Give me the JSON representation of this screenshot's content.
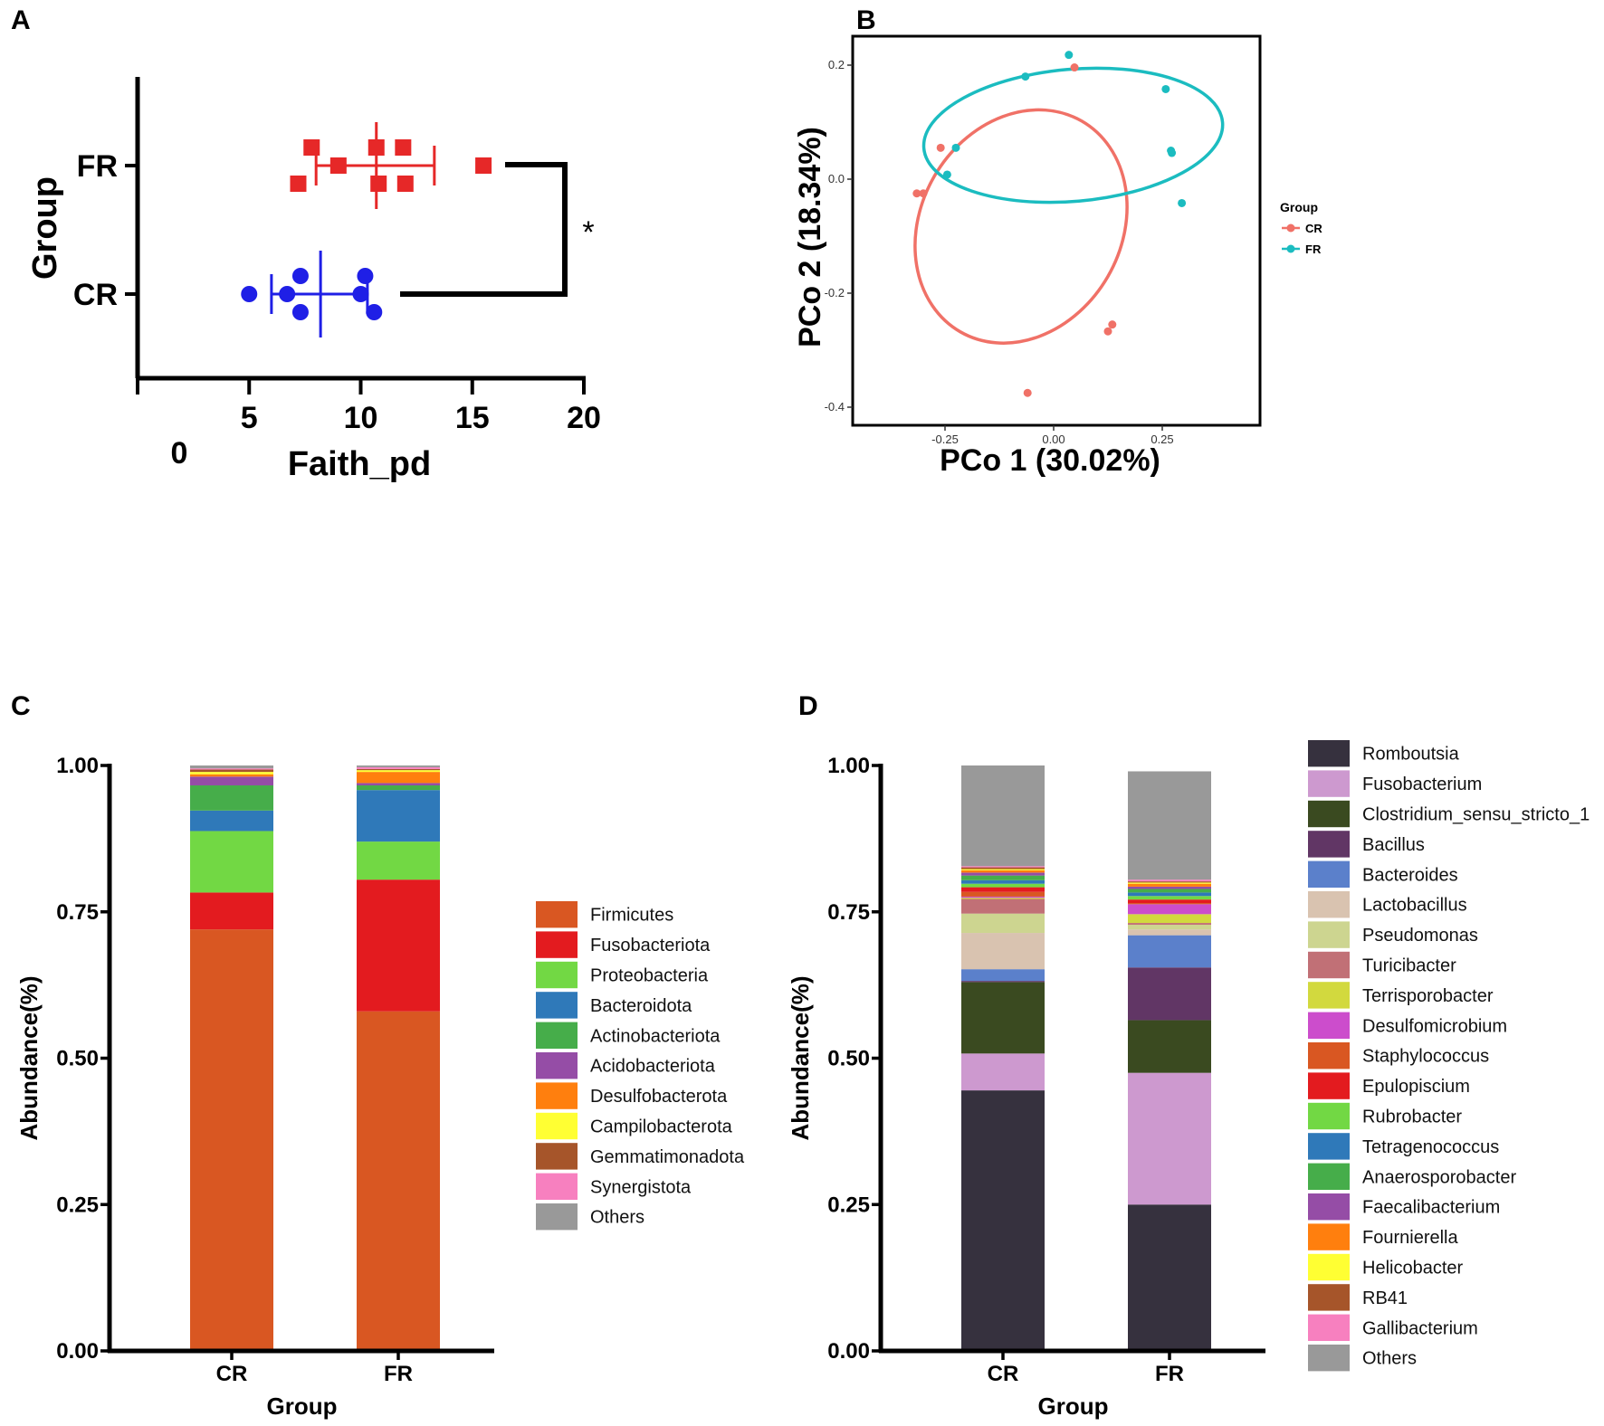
{
  "panels": {
    "a": "A",
    "b": "B",
    "c": "C",
    "d": "D"
  },
  "chart_data": [
    {
      "panel": "A",
      "type": "scatter",
      "xlabel": "Faith_pd",
      "ylabel": "Group",
      "x_ticks": [
        "0",
        "5",
        "10",
        "15",
        "20"
      ],
      "xlim": [
        0,
        20
      ],
      "categories": [
        "CR",
        "FR"
      ],
      "significance": "*",
      "series": [
        {
          "name": "CR",
          "color": "#1f1fe6",
          "marker": "circle",
          "points": [
            [
              5.0,
              0
            ],
            [
              6.7,
              0
            ],
            [
              7.3,
              0.5
            ],
            [
              7.3,
              -0.5
            ],
            [
              10.0,
              0
            ],
            [
              10.2,
              0.5
            ],
            [
              10.6,
              -0.5
            ]
          ],
          "mean": 8.2,
          "sd_low": 6.0,
          "sd_high": 10.3
        },
        {
          "name": "FR",
          "color": "#e62828",
          "marker": "square",
          "points": [
            [
              7.2,
              -0.5
            ],
            [
              7.8,
              0.5
            ],
            [
              9.0,
              0
            ],
            [
              10.7,
              0.5
            ],
            [
              10.8,
              -0.5
            ],
            [
              11.9,
              0.5
            ],
            [
              12.0,
              -0.5
            ],
            [
              15.5,
              0
            ]
          ],
          "mean": 10.7,
          "sd_low": 8.0,
          "sd_high": 13.3
        }
      ]
    },
    {
      "panel": "B",
      "type": "scatter",
      "xlabel": "PCo 1 (30.02%)",
      "ylabel": "PCo 2 (18.34%)",
      "x_ticks": [
        "-0.25",
        "0.00",
        "0.25"
      ],
      "y_ticks": [
        "0.2",
        "0.0",
        "-0.2",
        "-0.4"
      ],
      "legend_title": "Group",
      "series": [
        {
          "name": "CR",
          "color": "#f07167",
          "points": [
            [
              0.048,
              0.196
            ],
            [
              -0.26,
              0.055
            ],
            [
              -0.315,
              -0.025
            ],
            [
              -0.3,
              -0.025
            ],
            [
              0.135,
              -0.255
            ],
            [
              0.125,
              -0.267
            ],
            [
              -0.06,
              -0.375
            ]
          ],
          "ellipse": {
            "cx": -0.075,
            "cy": -0.083,
            "rx": 0.28,
            "ry": 0.185,
            "angle_deg": -60
          }
        },
        {
          "name": "FR",
          "color": "#1bbcc0",
          "points": [
            [
              0.035,
              0.218
            ],
            [
              -0.065,
              0.18
            ],
            [
              0.258,
              0.158
            ],
            [
              -0.225,
              0.055
            ],
            [
              -0.245,
              0.008
            ],
            [
              0.27,
              0.05
            ],
            [
              0.272,
              0.046
            ],
            [
              0.295,
              -0.042
            ]
          ],
          "ellipse": {
            "cx": 0.045,
            "cy": 0.077,
            "rx": 0.345,
            "ry": 0.122,
            "angle_deg": -5
          }
        }
      ]
    },
    {
      "panel": "C",
      "type": "bar",
      "stacked": true,
      "xlabel": "Group",
      "ylabel": "Abundance(%)",
      "categories": [
        "CR",
        "FR"
      ],
      "ylim": [
        0,
        1
      ],
      "y_ticks": [
        "0.00",
        "0.25",
        "0.50",
        "0.75",
        "1.00"
      ],
      "series": [
        {
          "name": "Firmicutes",
          "color": "#d95722",
          "values": [
            0.72,
            0.58
          ]
        },
        {
          "name": "Fusobacteriota",
          "color": "#e31b1f",
          "values": [
            0.063,
            0.225
          ]
        },
        {
          "name": "Proteobacteria",
          "color": "#72d844",
          "values": [
            0.105,
            0.065
          ]
        },
        {
          "name": "Bacteroidota",
          "color": "#2f79b9",
          "values": [
            0.035,
            0.088
          ]
        },
        {
          "name": "Actinobacteriota",
          "color": "#46ad4a",
          "values": [
            0.043,
            0.008
          ]
        },
        {
          "name": "Acidobacteriota",
          "color": "#954da6",
          "values": [
            0.015,
            0.004
          ]
        },
        {
          "name": "Desulfobacterota",
          "color": "#ff7f0e",
          "values": [
            0.004,
            0.019
          ]
        },
        {
          "name": "Campilobacterota",
          "color": "#ffff33",
          "values": [
            0.004,
            0.003
          ]
        },
        {
          "name": "Gemmatimonadota",
          "color": "#a6552a",
          "values": [
            0.004,
            0.002
          ]
        },
        {
          "name": "Synergistota",
          "color": "#f780bf",
          "values": [
            0.002,
            0.003
          ]
        },
        {
          "name": "Others",
          "color": "#999999",
          "values": [
            0.005,
            0.003
          ]
        }
      ]
    },
    {
      "panel": "D",
      "type": "bar",
      "stacked": true,
      "xlabel": "Group",
      "ylabel": "Abundance(%)",
      "categories": [
        "CR",
        "FR"
      ],
      "ylim": [
        0,
        1
      ],
      "y_ticks": [
        "0.00",
        "0.25",
        "0.50",
        "0.75",
        "1.00"
      ],
      "series": [
        {
          "name": "Romboutsia",
          "color": "#36313e",
          "values": [
            0.445,
            0.25
          ]
        },
        {
          "name": "Fusobacterium",
          "color": "#cd99cf",
          "values": [
            0.063,
            0.225
          ]
        },
        {
          "name": "Clostridium_sensu_stricto_1",
          "color": "#3a4a20",
          "values": [
            0.122,
            0.09
          ]
        },
        {
          "name": "Bacillus",
          "color": "#613665",
          "values": [
            0.002,
            0.09
          ]
        },
        {
          "name": "Bacteroides",
          "color": "#5b80cb",
          "values": [
            0.02,
            0.055
          ]
        },
        {
          "name": "Lactobacillus",
          "color": "#d9c3b0",
          "values": [
            0.062,
            0.01
          ]
        },
        {
          "name": "Pseudomonas",
          "color": "#cdd590",
          "values": [
            0.033,
            0.008
          ]
        },
        {
          "name": "Turicibacter",
          "color": "#c17076",
          "values": [
            0.025,
            0.003
          ]
        },
        {
          "name": "Terrisporobacter",
          "color": "#d2d93e",
          "values": [
            0.002,
            0.015
          ]
        },
        {
          "name": "Desulfomicrobium",
          "color": "#cc4dcc",
          "values": [
            0.002,
            0.017
          ]
        },
        {
          "name": "Staphylococcus",
          "color": "#d95722",
          "values": [
            0.008,
            0.002
          ]
        },
        {
          "name": "Epulopiscium",
          "color": "#e31b1f",
          "values": [
            0.008,
            0.006
          ]
        },
        {
          "name": "Rubrobacter",
          "color": "#72d844",
          "values": [
            0.006,
            0.006
          ]
        },
        {
          "name": "Tetragenococcus",
          "color": "#2f79b9",
          "values": [
            0.006,
            0.006
          ]
        },
        {
          "name": "Anaerosporobacter",
          "color": "#46ad4a",
          "values": [
            0.008,
            0.006
          ]
        },
        {
          "name": "Faecalibacterium",
          "color": "#954da6",
          "values": [
            0.005,
            0.004
          ]
        },
        {
          "name": "Fournierella",
          "color": "#ff7f0e",
          "values": [
            0.004,
            0.005
          ]
        },
        {
          "name": "Helicobacter",
          "color": "#ffff33",
          "values": [
            0.002,
            0.002
          ]
        },
        {
          "name": "RB41",
          "color": "#a6552a",
          "values": [
            0.003,
            0.002
          ]
        },
        {
          "name": "Gallibacterium",
          "color": "#f780bf",
          "values": [
            0.002,
            0.003
          ]
        },
        {
          "name": "Others",
          "color": "#999999",
          "values": [
            0.172,
            0.185
          ]
        }
      ]
    }
  ]
}
